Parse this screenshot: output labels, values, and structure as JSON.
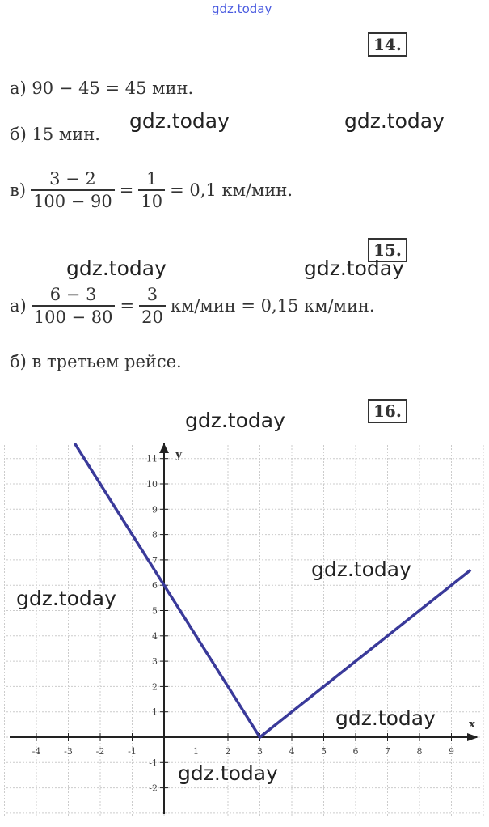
{
  "watermark": "gdz.today",
  "problems": [
    {
      "number": "14.",
      "a": {
        "label": "а)",
        "text": "90 − 45 = 45 мин."
      },
      "b": {
        "label": "б)",
        "text": "15 мин."
      },
      "c": {
        "label": "в)",
        "num1": "3 − 2",
        "den1": "100 − 90",
        "eq": "=",
        "num2": "1",
        "den2": "10",
        "result": "= 0,1  км/мин."
      }
    },
    {
      "number": "15.",
      "a": {
        "label": "а)",
        "num1": "6 − 3",
        "den1": "100 − 80",
        "eq": "=",
        "num2": "3",
        "den2": "20",
        "result": "км/мин = 0,15  км/мин."
      },
      "b": {
        "label": "б)",
        "text": "в третьем рейсе."
      }
    },
    {
      "number": "16."
    }
  ],
  "chart_data": {
    "type": "line",
    "xlabel": "x",
    "ylabel": "y",
    "xlim": [
      -4.8,
      9.8
    ],
    "ylim": [
      -2.9,
      11.6
    ],
    "x_ticks": [
      -4,
      -3,
      -2,
      -1,
      1,
      2,
      3,
      4,
      5,
      6,
      7,
      8,
      9
    ],
    "y_ticks": [
      -2,
      -1,
      1,
      2,
      3,
      4,
      5,
      6,
      7,
      8,
      9,
      10,
      11
    ],
    "grid": true,
    "series": [
      {
        "color": "#3a3a9a",
        "points": [
          [
            -2.8,
            11.6
          ],
          [
            0,
            6
          ],
          [
            3,
            0
          ],
          [
            9.6,
            6.6
          ]
        ]
      }
    ]
  }
}
